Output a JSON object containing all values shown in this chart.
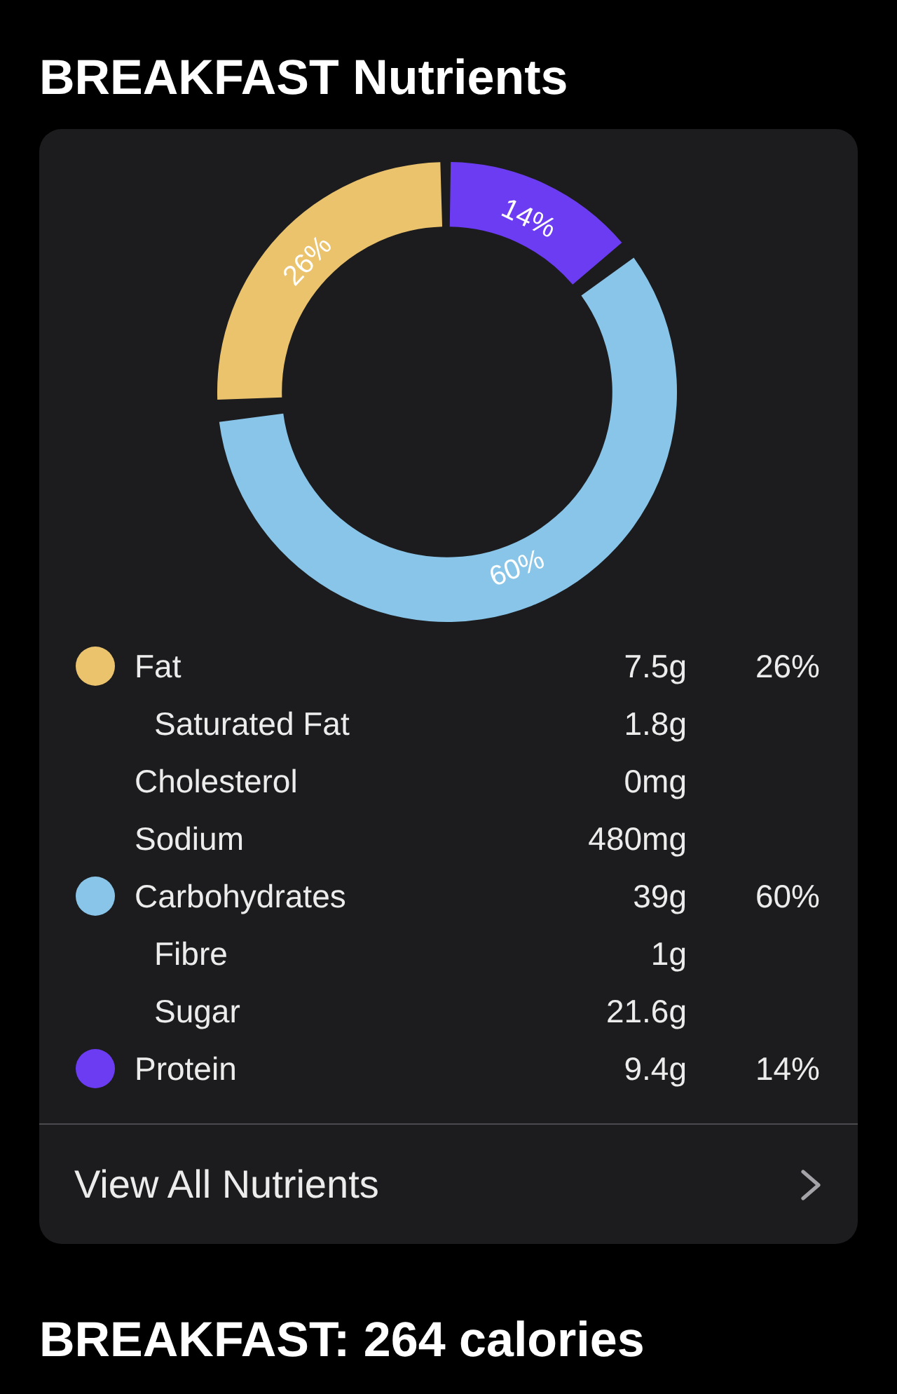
{
  "chart_data": {
    "type": "donut",
    "title": "BREAKFAST Nutrients",
    "categories": [
      "Fat",
      "Carbohydrates",
      "Protein"
    ],
    "values": [
      26,
      60,
      14
    ],
    "colors": [
      "#ebc36d",
      "#88c5e8",
      "#6b3cf2"
    ],
    "value_labels": [
      "26%",
      "60%",
      "14%"
    ],
    "legend": "bottom",
    "annotations": [
      "7.5g",
      "Saturated Fat",
      "1.8g",
      "Cholesterol",
      "0mg",
      "Sodium",
      "480mg",
      "39g",
      "Fibre",
      "1g",
      "Sugar",
      "21.6g",
      "9.4g",
      "View All Nutrients",
      "BREAKFAST: 264 calories"
    ]
  }
}
